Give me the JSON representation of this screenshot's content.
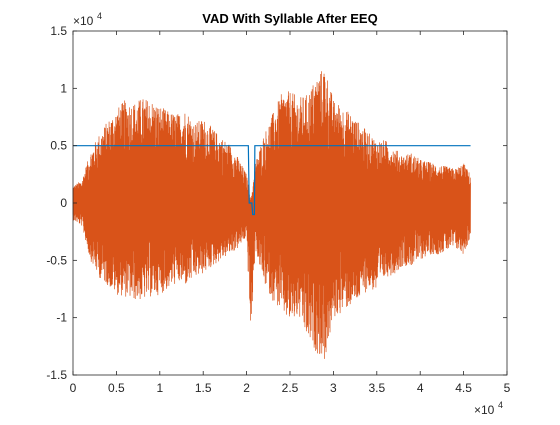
{
  "chart_data": {
    "type": "line",
    "title": "VAD With Syllable After EEQ",
    "xlabel": "",
    "ylabel": "",
    "x_multiplier": "×10",
    "x_exponent": "4",
    "y_multiplier": "×10",
    "y_exponent": "4",
    "xlim": [
      0,
      5
    ],
    "ylim": [
      -1.5,
      1.5
    ],
    "x_ticks": [
      "0",
      "0.5",
      "1",
      "1.5",
      "2",
      "2.5",
      "3",
      "3.5",
      "4",
      "4.5",
      "5"
    ],
    "y_ticks": [
      "-1.5",
      "-1",
      "-0.5",
      "0",
      "0.5",
      "1",
      "1.5"
    ],
    "grid": false,
    "legend": "none",
    "colors": {
      "vad": "#0072BD",
      "signal": "#D95319",
      "axis": "#262626"
    },
    "series": [
      {
        "role": "vad",
        "x": [
          0,
          2.02,
          2.03,
          2.06,
          2.07,
          2.09,
          2.095,
          4.58
        ],
        "y": [
          0.5,
          0.5,
          0.0,
          0.0,
          -0.1,
          -0.1,
          0.5,
          0.5
        ]
      },
      {
        "role": "signal",
        "envelope_x": [
          0.0,
          0.1,
          0.2,
          0.3,
          0.4,
          0.5,
          0.6,
          0.7,
          0.8,
          0.9,
          1.0,
          1.1,
          1.2,
          1.3,
          1.4,
          1.5,
          1.6,
          1.7,
          1.8,
          1.9,
          2.0,
          2.05,
          2.1,
          2.2,
          2.3,
          2.4,
          2.5,
          2.6,
          2.7,
          2.8,
          2.9,
          3.0,
          3.1,
          3.2,
          3.3,
          3.4,
          3.5,
          3.6,
          3.7,
          3.8,
          3.9,
          4.0,
          4.1,
          4.2,
          4.3,
          4.4,
          4.5,
          4.58
        ],
        "envelope_top": [
          0.15,
          0.2,
          0.45,
          0.6,
          0.72,
          0.82,
          0.9,
          0.88,
          0.92,
          0.9,
          0.85,
          0.8,
          0.78,
          0.82,
          0.7,
          0.74,
          0.66,
          0.58,
          0.52,
          0.4,
          0.25,
          0.02,
          0.35,
          0.6,
          0.78,
          0.95,
          0.98,
          0.92,
          0.95,
          1.1,
          1.2,
          0.9,
          0.85,
          0.78,
          0.7,
          0.62,
          0.55,
          0.55,
          0.48,
          0.42,
          0.44,
          0.38,
          0.36,
          0.34,
          0.32,
          0.3,
          0.35,
          0.25
        ],
        "envelope_bottom": [
          -0.15,
          -0.2,
          -0.5,
          -0.65,
          -0.72,
          -0.8,
          -0.82,
          -0.85,
          -0.85,
          -0.82,
          -0.8,
          -0.75,
          -0.7,
          -0.72,
          -0.66,
          -0.62,
          -0.56,
          -0.5,
          -0.45,
          -0.4,
          -0.3,
          -1.2,
          -0.4,
          -0.7,
          -0.85,
          -0.95,
          -1.05,
          -1.0,
          -1.2,
          -1.3,
          -1.38,
          -1.02,
          -0.95,
          -0.9,
          -0.85,
          -0.75,
          -0.78,
          -0.65,
          -0.62,
          -0.55,
          -0.55,
          -0.5,
          -0.45,
          -0.45,
          -0.42,
          -0.4,
          -0.45,
          -0.3
        ]
      }
    ]
  }
}
